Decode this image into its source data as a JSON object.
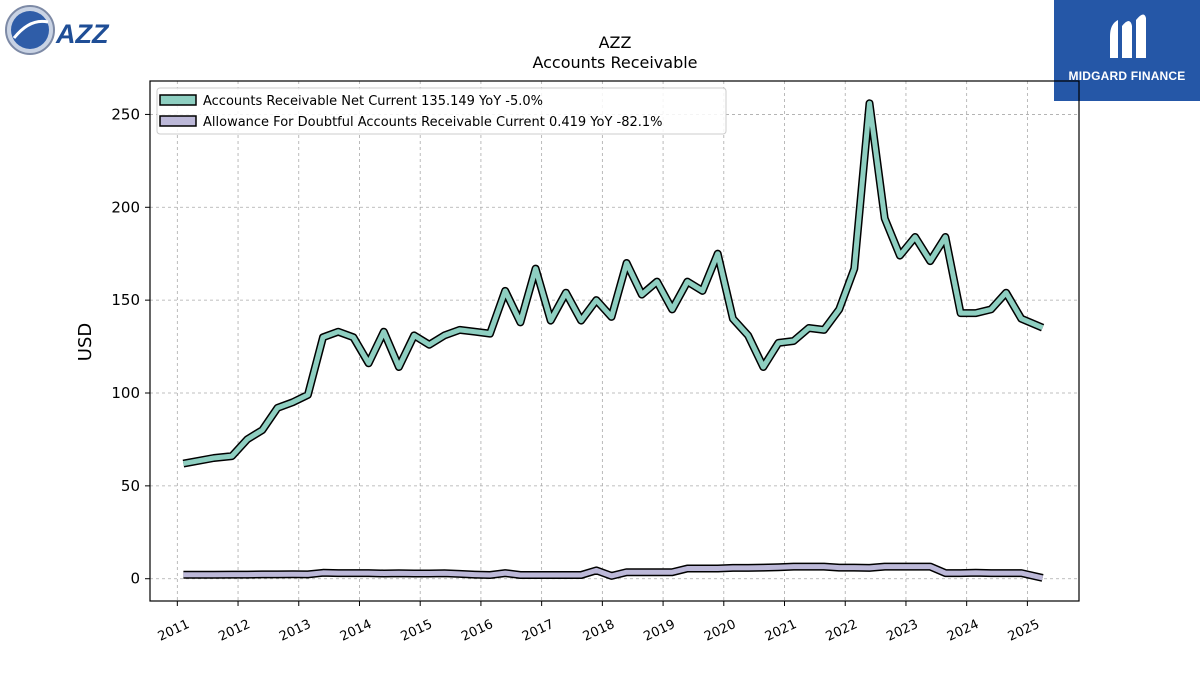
{
  "brand": {
    "ticker_logo_text": "AZZ",
    "company_logo_text": "MIDGARD FINANCE"
  },
  "chart_data": {
    "type": "line",
    "title": "AZZ",
    "subtitle": "Accounts Receivable",
    "ylabel": "USD",
    "xlabel": "",
    "ylim": [
      -12,
      268
    ],
    "yticks": [
      0,
      50,
      100,
      150,
      200,
      250
    ],
    "xlim": [
      2010.55,
      2025.85
    ],
    "xticks": [
      "2011",
      "2012",
      "2013",
      "2014",
      "2015",
      "2016",
      "2017",
      "2018",
      "2019",
      "2020",
      "2021",
      "2022",
      "2023",
      "2024",
      "2025"
    ],
    "grid": true,
    "legend_position": "top-left",
    "series": [
      {
        "name": "Accounts Receivable Net Current",
        "legend": "Accounts Receivable Net Current  135.149 YoY -5.0%",
        "color": "#8ecfc1",
        "x": [
          2011.1,
          2011.6,
          2011.9,
          2012.15,
          2012.4,
          2012.65,
          2012.9,
          2013.15,
          2013.4,
          2013.65,
          2013.9,
          2014.15,
          2014.4,
          2014.65,
          2014.9,
          2015.15,
          2015.4,
          2015.65,
          2015.9,
          2016.15,
          2016.4,
          2016.65,
          2016.9,
          2017.15,
          2017.4,
          2017.65,
          2017.9,
          2018.15,
          2018.4,
          2018.65,
          2018.9,
          2019.15,
          2019.4,
          2019.65,
          2019.9,
          2020.15,
          2020.4,
          2020.65,
          2020.9,
          2021.15,
          2021.4,
          2021.65,
          2021.9,
          2022.15,
          2022.4,
          2022.65,
          2022.9,
          2023.15,
          2023.4,
          2023.65,
          2023.9,
          2024.15,
          2024.4,
          2024.65,
          2024.9,
          2025.25
        ],
        "values": [
          62,
          65,
          66,
          75,
          80,
          92,
          95,
          99,
          130,
          133,
          130,
          116,
          133,
          114,
          131,
          126,
          131,
          134,
          133,
          132,
          155,
          138,
          167,
          139,
          154,
          139,
          150,
          141,
          170,
          153,
          160,
          145,
          160,
          155,
          175,
          140,
          131,
          114,
          127,
          128,
          135,
          134,
          145,
          167,
          256,
          194,
          174,
          184,
          171,
          184,
          143,
          143,
          145,
          154,
          140,
          135.149
        ]
      },
      {
        "name": "Allowance For Doubtful Accounts Receivable Current",
        "legend": "Allowance For Doubtful Accounts Receivable Current  0.419 YoY -82.1%",
        "color": "#bcb8d8",
        "x": [
          2011.1,
          2011.6,
          2011.9,
          2012.15,
          2012.4,
          2012.65,
          2012.9,
          2013.15,
          2013.4,
          2013.65,
          2013.9,
          2014.15,
          2014.4,
          2014.65,
          2014.9,
          2015.15,
          2015.4,
          2015.65,
          2015.9,
          2016.15,
          2016.4,
          2016.65,
          2016.9,
          2017.15,
          2017.4,
          2017.65,
          2017.9,
          2018.15,
          2018.4,
          2018.65,
          2018.9,
          2019.15,
          2019.4,
          2019.65,
          2019.9,
          2020.15,
          2020.4,
          2020.65,
          2020.9,
          2021.15,
          2021.4,
          2021.65,
          2021.9,
          2022.15,
          2022.4,
          2022.65,
          2022.9,
          2023.15,
          2023.4,
          2023.65,
          2023.9,
          2024.15,
          2024.4,
          2024.65,
          2024.9,
          2025.25
        ],
        "values": [
          2.1,
          2.1,
          2.2,
          2.2,
          2.3,
          2.3,
          2.4,
          2.3,
          3.2,
          3.0,
          3.0,
          3.0,
          2.8,
          2.9,
          2.8,
          2.8,
          2.9,
          2.6,
          2.2,
          2.0,
          3.0,
          2.0,
          2.0,
          2.0,
          2.0,
          2.0,
          4.5,
          1.5,
          3.5,
          3.5,
          3.5,
          3.5,
          5.5,
          5.5,
          5.5,
          5.8,
          5.8,
          6.0,
          6.2,
          6.5,
          6.5,
          6.5,
          6.0,
          6.0,
          5.8,
          6.5,
          6.5,
          6.5,
          6.5,
          3.0,
          3.0,
          3.2,
          3.0,
          3.0,
          3.0,
          0.419
        ]
      }
    ]
  }
}
